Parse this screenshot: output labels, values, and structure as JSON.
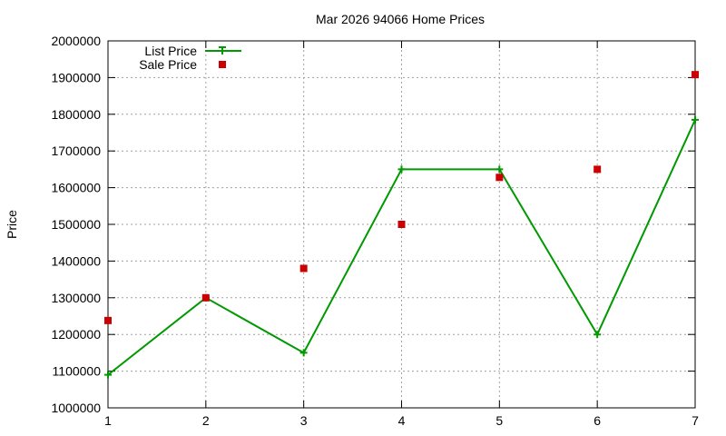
{
  "chart_data": {
    "type": "line",
    "title": "Mar 2026 94066 Home Prices",
    "xlabel": "",
    "ylabel": "Price",
    "x": [
      1,
      2,
      3,
      4,
      5,
      6,
      7
    ],
    "xlim": [
      1,
      7
    ],
    "ylim": [
      1000000,
      2000000
    ],
    "x_ticks": [
      "1",
      "2",
      "3",
      "4",
      "5",
      "6",
      "7"
    ],
    "y_ticks": [
      "1000000",
      "1100000",
      "1200000",
      "1300000",
      "1400000",
      "1500000",
      "1600000",
      "1700000",
      "1800000",
      "1900000",
      "2000000"
    ],
    "grid": true,
    "legend_position": "top-left",
    "series": [
      {
        "name": "List Price",
        "style": "line-with-plus-markers",
        "color": "#009900",
        "values": [
          1090000,
          1300000,
          1150000,
          1650000,
          1650000,
          1200000,
          1785000
        ]
      },
      {
        "name": "Sale Price",
        "style": "square-markers",
        "color": "#cc0000",
        "values": [
          1238000,
          1300000,
          1380000,
          1500000,
          1628000,
          1650000,
          1908000
        ]
      }
    ]
  }
}
